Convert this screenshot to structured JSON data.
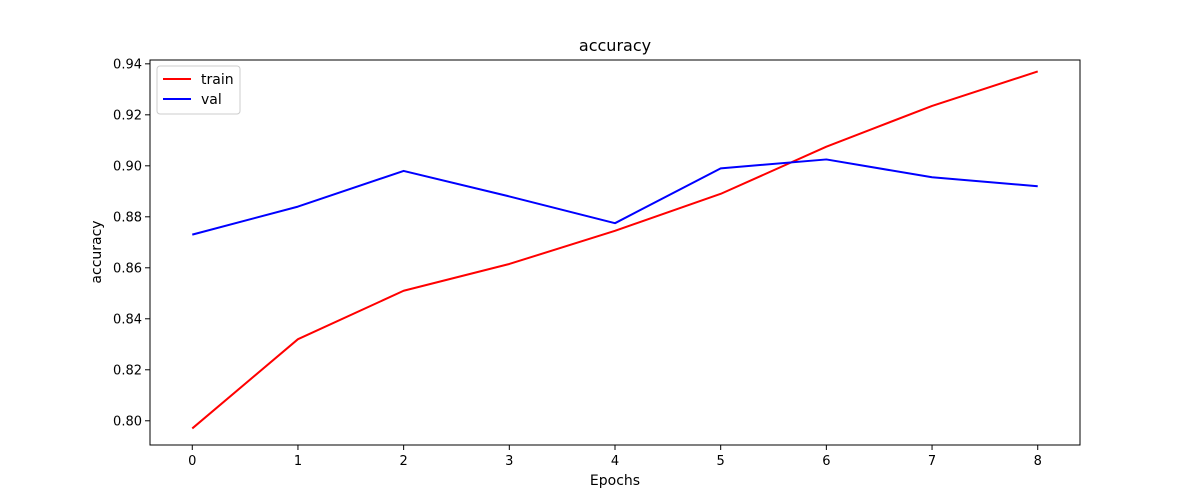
{
  "chart_data": {
    "type": "line",
    "title": "accuracy",
    "xlabel": "Epochs",
    "ylabel": "accuracy",
    "x": [
      0,
      1,
      2,
      3,
      4,
      5,
      6,
      7,
      8
    ],
    "xlim": [
      -0.4,
      8.4
    ],
    "ylim": [
      0.7905,
      0.9415
    ],
    "xticks": [
      0,
      1,
      2,
      3,
      4,
      5,
      6,
      7,
      8
    ],
    "yticks": [
      0.8,
      0.82,
      0.84,
      0.86,
      0.88,
      0.9,
      0.92,
      0.94
    ],
    "ytick_labels": [
      "0.80",
      "0.82",
      "0.84",
      "0.86",
      "0.88",
      "0.90",
      "0.92",
      "0.94"
    ],
    "grid": false,
    "legend_position": "top-left",
    "series": [
      {
        "name": "train",
        "color": "#ff0000",
        "values": [
          0.797,
          0.832,
          0.851,
          0.8615,
          0.8745,
          0.889,
          0.9075,
          0.9235,
          0.937
        ]
      },
      {
        "name": "val",
        "color": "#0000ff",
        "values": [
          0.873,
          0.884,
          0.898,
          0.888,
          0.8775,
          0.899,
          0.9025,
          0.8955,
          0.892
        ]
      }
    ]
  }
}
